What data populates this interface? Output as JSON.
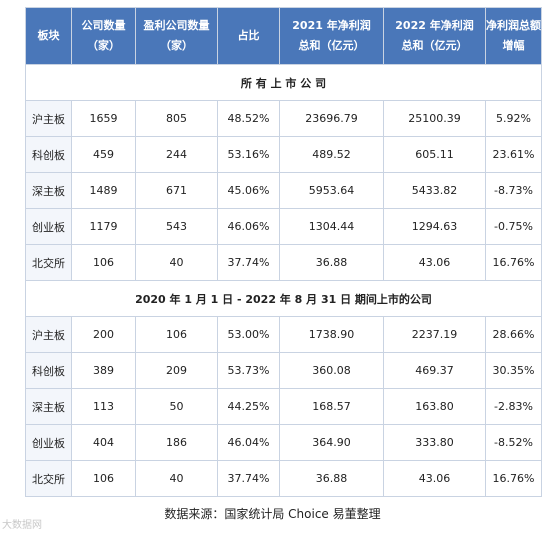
{
  "headers": [
    {
      "l1": "板块",
      "l2": ""
    },
    {
      "l1": "公司数量",
      "l2": "（家）"
    },
    {
      "l1": "盈利公司数量",
      "l2": "（家）"
    },
    {
      "l1": "占比",
      "l2": ""
    },
    {
      "l1": "2021 年净利润",
      "l2": "总和（亿元）"
    },
    {
      "l1": "2022 年净利润",
      "l2": "总和（亿元）"
    },
    {
      "l1": "净利润总额",
      "l2": "增幅"
    }
  ],
  "sections": [
    {
      "title": "所 有 上 市 公 司",
      "rows": [
        [
          "沪主板",
          "1659",
          "805",
          "48.52%",
          "23696.79",
          "25100.39",
          "5.92%"
        ],
        [
          "科创板",
          "459",
          "244",
          "53.16%",
          "489.52",
          "605.11",
          "23.61%"
        ],
        [
          "深主板",
          "1489",
          "671",
          "45.06%",
          "5953.64",
          "5433.82",
          "-8.73%"
        ],
        [
          "创业板",
          "1179",
          "543",
          "46.06%",
          "1304.44",
          "1294.63",
          "-0.75%"
        ],
        [
          "北交所",
          "106",
          "40",
          "37.74%",
          "36.88",
          "43.06",
          "16.76%"
        ]
      ]
    },
    {
      "title": "2020 年 1 月 1 日 - 2022 年 8 月 31 日 期间上市的公司",
      "rows": [
        [
          "沪主板",
          "200",
          "106",
          "53.00%",
          "1738.90",
          "2237.19",
          "28.66%"
        ],
        [
          "科创板",
          "389",
          "209",
          "53.73%",
          "360.08",
          "469.37",
          "30.35%"
        ],
        [
          "深主板",
          "113",
          "50",
          "44.25%",
          "168.57",
          "163.80",
          "-2.83%"
        ],
        [
          "创业板",
          "404",
          "186",
          "46.04%",
          "364.90",
          "333.80",
          "-8.52%"
        ],
        [
          "北交所",
          "106",
          "40",
          "37.74%",
          "36.88",
          "43.06",
          "16.76%"
        ]
      ]
    }
  ],
  "source": "数据来源：国家统计局  Choice  易董整理",
  "watermark": "大数据网"
}
